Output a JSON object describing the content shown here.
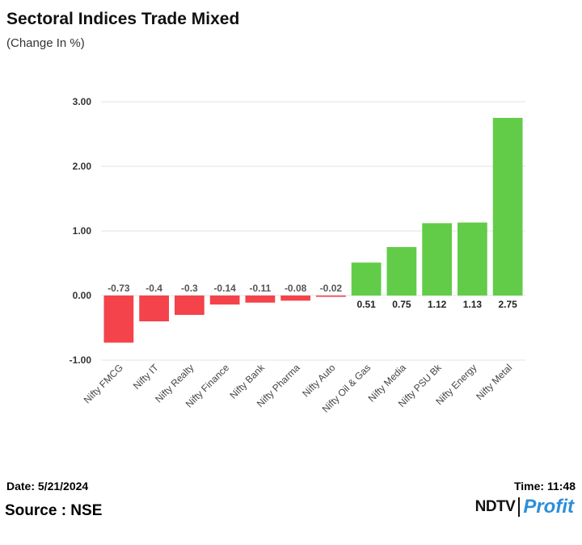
{
  "header": {
    "title": "Sectoral Indices Trade Mixed",
    "subtitle": "(Change In %)"
  },
  "footer": {
    "date": "Date: 5/21/2024",
    "time": "Time: 11:48",
    "source": "Source : NSE",
    "logo_left": "NDTV",
    "logo_right": "Profit"
  },
  "colors": {
    "negative": "#f4434b",
    "positive": "#62cc48",
    "grid": "#e3e3e3",
    "logo_accent": "#2d8fd8"
  },
  "chart_data": {
    "type": "bar",
    "title": "Sectoral Indices Trade Mixed",
    "ylabel": "Change In %",
    "xlabel": "",
    "categories": [
      "Nifty FMCG",
      "Nifty IT",
      "Nifty Realty",
      "Nifty Finance",
      "Nifty Bank",
      "Nifty Pharma",
      "Nifty Auto",
      "Nifty Oil & Gas",
      "Nifty Media",
      "Nifty PSU Bk",
      "Nifty Energy",
      "Nifty Metal"
    ],
    "values": [
      -0.73,
      -0.4,
      -0.3,
      -0.14,
      -0.11,
      -0.08,
      -0.02,
      0.51,
      0.75,
      1.12,
      1.13,
      2.75
    ],
    "value_labels": [
      "-0.73",
      "-0.4",
      "-0.3",
      "-0.14",
      "-0.11",
      "-0.08",
      "-0.02",
      "0.51",
      "0.75",
      "1.12",
      "1.13",
      "2.75"
    ],
    "yticks": [
      3,
      2,
      1,
      0,
      -1
    ],
    "ytick_labels": [
      "3.00",
      "2.00",
      "1.00",
      "0.00",
      "-1.00"
    ],
    "ylim": [
      -1,
      3
    ],
    "grid": true,
    "legend": "none"
  }
}
